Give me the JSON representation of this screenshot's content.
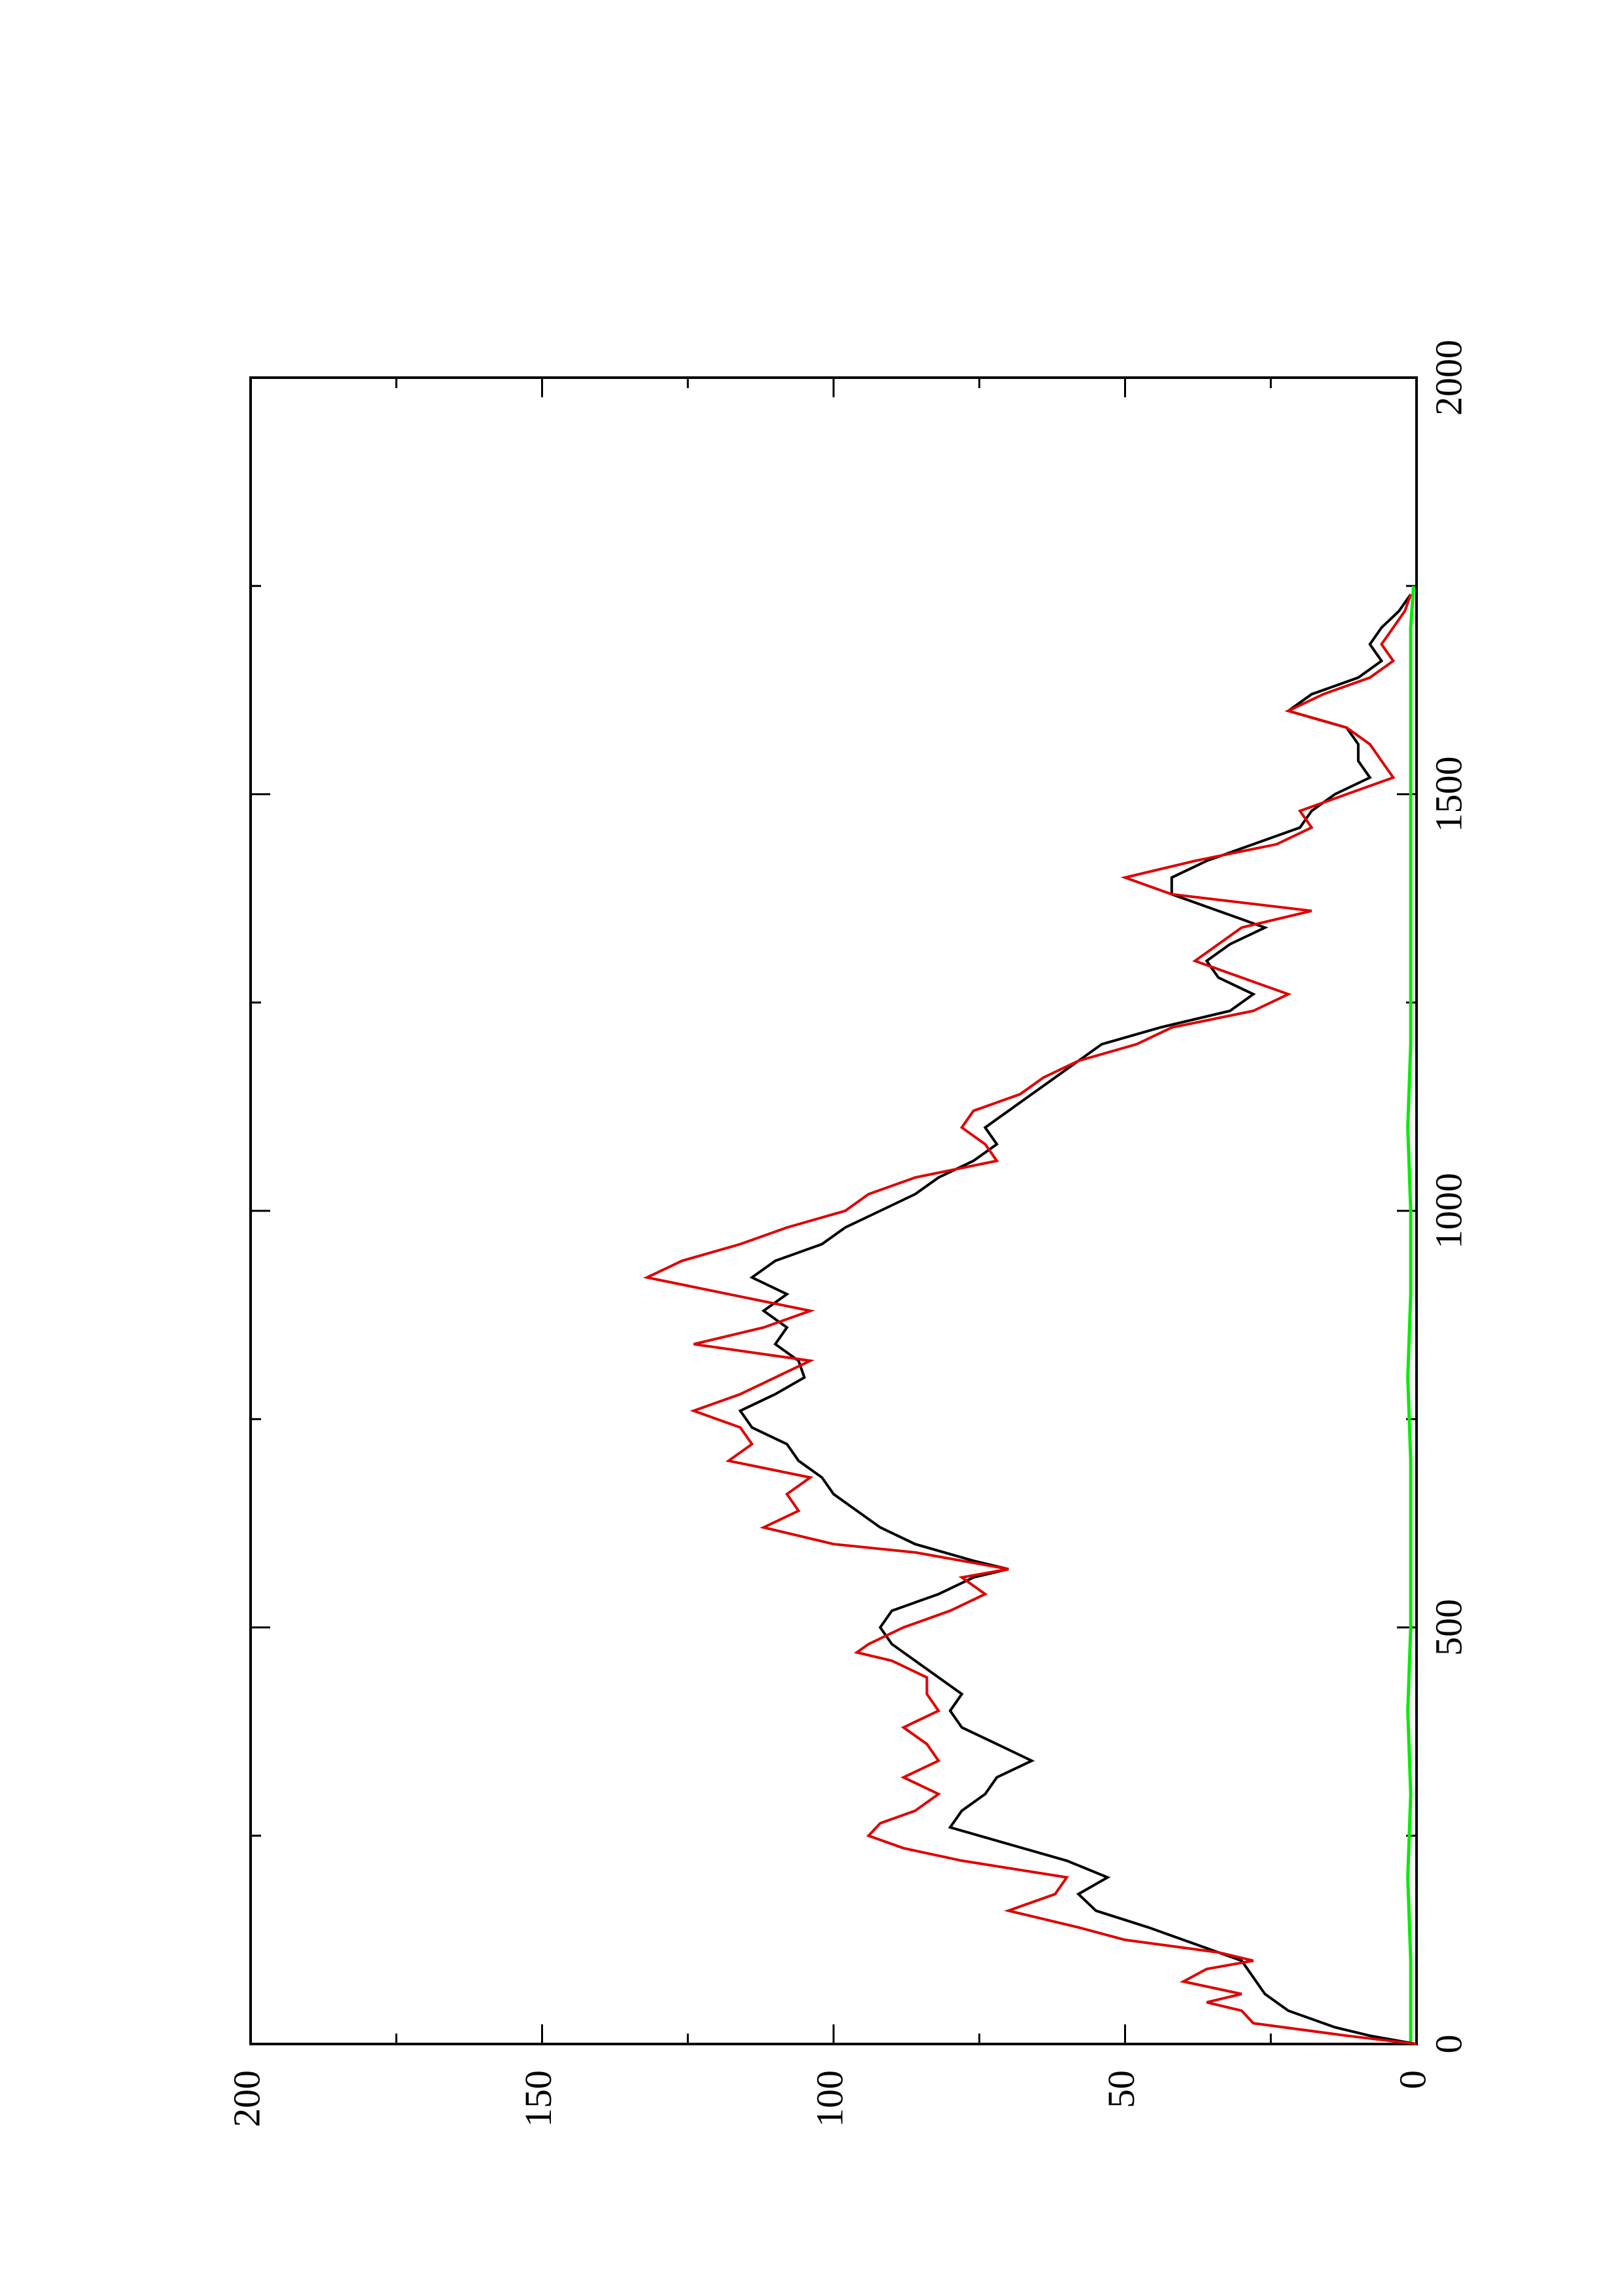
{
  "chart_data": {
    "type": "line",
    "orientation": "rotated 90 degrees counter-clockwise (x axis vertical, y axis horizontal)",
    "title": "",
    "xlabel": "",
    "ylabel": "",
    "xlim": [
      0,
      2000
    ],
    "ylim": [
      0,
      200
    ],
    "x_ticks": [
      0,
      500,
      1000,
      1500,
      2000
    ],
    "y_ticks": [
      0,
      50,
      100,
      150,
      200
    ],
    "x_tick_labels": [
      "0",
      "500",
      "1000",
      "1500",
      "2000"
    ],
    "y_tick_labels": [
      "0",
      "50",
      "100",
      "150",
      "200"
    ],
    "grid": false,
    "legend": "none",
    "series": [
      {
        "color": "#000000",
        "points": [
          [
            0,
            0
          ],
          [
            10,
            8
          ],
          [
            20,
            14
          ],
          [
            30,
            18
          ],
          [
            40,
            22
          ],
          [
            60,
            26
          ],
          [
            80,
            28
          ],
          [
            100,
            30
          ],
          [
            120,
            38
          ],
          [
            140,
            46
          ],
          [
            160,
            55
          ],
          [
            180,
            58
          ],
          [
            200,
            53
          ],
          [
            220,
            60
          ],
          [
            240,
            70
          ],
          [
            260,
            80
          ],
          [
            280,
            78
          ],
          [
            300,
            74
          ],
          [
            320,
            72
          ],
          [
            340,
            66
          ],
          [
            360,
            72
          ],
          [
            380,
            78
          ],
          [
            400,
            80
          ],
          [
            420,
            78
          ],
          [
            440,
            82
          ],
          [
            460,
            86
          ],
          [
            480,
            90
          ],
          [
            500,
            92
          ],
          [
            520,
            90
          ],
          [
            540,
            82
          ],
          [
            560,
            76
          ],
          [
            570,
            70
          ],
          [
            580,
            76
          ],
          [
            600,
            86
          ],
          [
            620,
            92
          ],
          [
            640,
            96
          ],
          [
            660,
            100
          ],
          [
            680,
            102
          ],
          [
            700,
            106
          ],
          [
            720,
            108
          ],
          [
            740,
            114
          ],
          [
            760,
            116
          ],
          [
            780,
            110
          ],
          [
            800,
            105
          ],
          [
            820,
            106
          ],
          [
            840,
            110
          ],
          [
            860,
            108
          ],
          [
            880,
            112
          ],
          [
            900,
            108
          ],
          [
            920,
            114
          ],
          [
            940,
            110
          ],
          [
            960,
            102
          ],
          [
            980,
            98
          ],
          [
            1000,
            92
          ],
          [
            1020,
            86
          ],
          [
            1040,
            82
          ],
          [
            1060,
            76
          ],
          [
            1080,
            72
          ],
          [
            1100,
            74
          ],
          [
            1120,
            70
          ],
          [
            1140,
            66
          ],
          [
            1160,
            62
          ],
          [
            1180,
            58
          ],
          [
            1200,
            54
          ],
          [
            1220,
            44
          ],
          [
            1240,
            32
          ],
          [
            1260,
            28
          ],
          [
            1280,
            34
          ],
          [
            1300,
            36
          ],
          [
            1320,
            32
          ],
          [
            1340,
            26
          ],
          [
            1360,
            34
          ],
          [
            1380,
            42
          ],
          [
            1400,
            42
          ],
          [
            1420,
            36
          ],
          [
            1440,
            28
          ],
          [
            1460,
            20
          ],
          [
            1480,
            18
          ],
          [
            1500,
            14
          ],
          [
            1520,
            8
          ],
          [
            1540,
            10
          ],
          [
            1560,
            10
          ],
          [
            1580,
            12
          ],
          [
            1600,
            22
          ],
          [
            1620,
            18
          ],
          [
            1640,
            10
          ],
          [
            1660,
            6
          ],
          [
            1680,
            8
          ],
          [
            1700,
            6
          ],
          [
            1720,
            3
          ],
          [
            1740,
            1
          ]
        ]
      },
      {
        "color": "#e00000",
        "points": [
          [
            0,
            0
          ],
          [
            10,
            12
          ],
          [
            25,
            28
          ],
          [
            40,
            30
          ],
          [
            50,
            36
          ],
          [
            60,
            30
          ],
          [
            75,
            40
          ],
          [
            90,
            36
          ],
          [
            100,
            28
          ],
          [
            110,
            34
          ],
          [
            125,
            50
          ],
          [
            140,
            58
          ],
          [
            160,
            70
          ],
          [
            180,
            62
          ],
          [
            200,
            60
          ],
          [
            220,
            78
          ],
          [
            235,
            88
          ],
          [
            250,
            94
          ],
          [
            265,
            92
          ],
          [
            280,
            86
          ],
          [
            300,
            82
          ],
          [
            320,
            88
          ],
          [
            340,
            82
          ],
          [
            360,
            84
          ],
          [
            380,
            88
          ],
          [
            400,
            82
          ],
          [
            420,
            84
          ],
          [
            440,
            84
          ],
          [
            460,
            90
          ],
          [
            470,
            96
          ],
          [
            480,
            94
          ],
          [
            500,
            88
          ],
          [
            520,
            80
          ],
          [
            540,
            74
          ],
          [
            560,
            78
          ],
          [
            570,
            70
          ],
          [
            590,
            86
          ],
          [
            600,
            100
          ],
          [
            620,
            112
          ],
          [
            640,
            106
          ],
          [
            660,
            108
          ],
          [
            680,
            104
          ],
          [
            700,
            118
          ],
          [
            720,
            114
          ],
          [
            740,
            116
          ],
          [
            760,
            124
          ],
          [
            780,
            116
          ],
          [
            800,
            110
          ],
          [
            820,
            104
          ],
          [
            840,
            124
          ],
          [
            860,
            112
          ],
          [
            880,
            104
          ],
          [
            900,
            118
          ],
          [
            920,
            132
          ],
          [
            940,
            126
          ],
          [
            960,
            116
          ],
          [
            980,
            108
          ],
          [
            1000,
            98
          ],
          [
            1020,
            94
          ],
          [
            1040,
            86
          ],
          [
            1060,
            72
          ],
          [
            1080,
            74
          ],
          [
            1100,
            78
          ],
          [
            1120,
            76
          ],
          [
            1140,
            68
          ],
          [
            1160,
            64
          ],
          [
            1180,
            58
          ],
          [
            1200,
            48
          ],
          [
            1220,
            42
          ],
          [
            1240,
            28
          ],
          [
            1260,
            22
          ],
          [
            1280,
            30
          ],
          [
            1300,
            38
          ],
          [
            1320,
            34
          ],
          [
            1340,
            30
          ],
          [
            1360,
            18
          ],
          [
            1380,
            42
          ],
          [
            1400,
            50
          ],
          [
            1420,
            38
          ],
          [
            1440,
            24
          ],
          [
            1460,
            18
          ],
          [
            1480,
            20
          ],
          [
            1500,
            12
          ],
          [
            1520,
            4
          ],
          [
            1540,
            6
          ],
          [
            1560,
            8
          ],
          [
            1580,
            12
          ],
          [
            1600,
            22
          ],
          [
            1620,
            16
          ],
          [
            1640,
            8
          ],
          [
            1660,
            4
          ],
          [
            1680,
            6
          ],
          [
            1700,
            4
          ],
          [
            1720,
            2
          ],
          [
            1740,
            1
          ]
        ]
      },
      {
        "color": "#00ee00",
        "points": [
          [
            0,
            1
          ],
          [
            100,
            1
          ],
          [
            200,
            1.5
          ],
          [
            300,
            1
          ],
          [
            400,
            1.5
          ],
          [
            500,
            1
          ],
          [
            600,
            1
          ],
          [
            700,
            1
          ],
          [
            800,
            1.5
          ],
          [
            900,
            1
          ],
          [
            1000,
            1
          ],
          [
            1100,
            1.5
          ],
          [
            1200,
            1
          ],
          [
            1300,
            1
          ],
          [
            1400,
            1
          ],
          [
            1500,
            1
          ],
          [
            1600,
            1
          ],
          [
            1700,
            1
          ],
          [
            1750,
            0.5
          ]
        ]
      }
    ]
  }
}
